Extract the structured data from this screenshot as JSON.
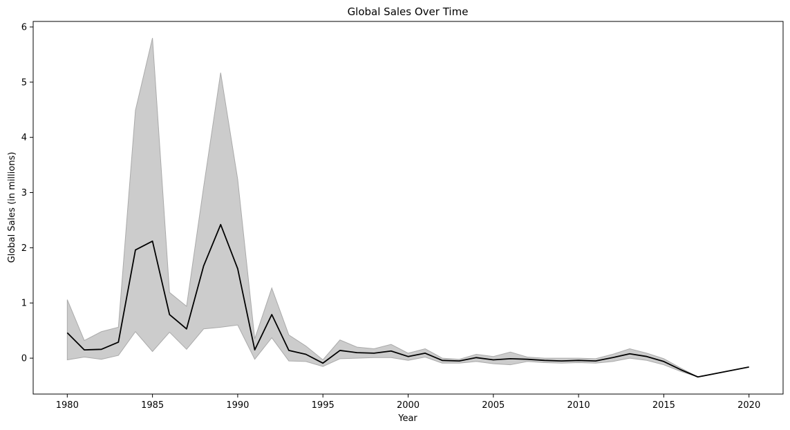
{
  "chart_data": {
    "type": "line",
    "title": "Global Sales Over Time",
    "xlabel": "Year",
    "ylabel": "Global Sales (in millions)",
    "xlim": [
      1978,
      2022
    ],
    "ylim": [
      -0.65,
      6.1
    ],
    "xticks": [
      1980,
      1985,
      1990,
      1995,
      2000,
      2005,
      2010,
      2015,
      2020
    ],
    "yticks": [
      0,
      1,
      2,
      3,
      4,
      5,
      6
    ],
    "grid": false,
    "colors": {
      "line": "#000000",
      "band": "#cccccc",
      "band_edge": "#aaaaaa"
    },
    "series": [
      {
        "x": [
          1980,
          1981,
          1982,
          1983,
          1984,
          1985,
          1986,
          1987,
          1988,
          1989,
          1990,
          1991,
          1992,
          1993,
          1994,
          1995,
          1996,
          1997,
          1998,
          1999,
          2000,
          2001,
          2002,
          2003,
          2004,
          2005,
          2006,
          2007,
          2008,
          2009,
          2010,
          2011,
          2012,
          2013,
          2014,
          2015,
          2016,
          2017,
          2020
        ],
        "y": [
          0.46,
          0.15,
          0.16,
          0.29,
          1.96,
          2.12,
          0.79,
          0.53,
          1.67,
          2.42,
          1.62,
          0.15,
          0.79,
          0.14,
          0.07,
          -0.09,
          0.14,
          0.1,
          0.09,
          0.13,
          0.03,
          0.09,
          -0.04,
          -0.05,
          0.01,
          -0.03,
          -0.01,
          -0.02,
          -0.04,
          -0.05,
          -0.04,
          -0.05,
          0.01,
          0.08,
          0.03,
          -0.06,
          -0.21,
          -0.34,
          -0.16
        ],
        "lower": [
          -0.03,
          0.02,
          -0.02,
          0.05,
          0.48,
          0.12,
          0.47,
          0.16,
          0.53,
          0.56,
          0.6,
          -0.02,
          0.37,
          -0.05,
          -0.06,
          -0.15,
          -0.01,
          0.0,
          0.01,
          0.01,
          -0.04,
          0.02,
          -0.09,
          -0.09,
          -0.06,
          -0.1,
          -0.12,
          -0.06,
          -0.08,
          -0.09,
          -0.08,
          -0.09,
          -0.06,
          0.0,
          -0.04,
          -0.12,
          -0.24,
          -0.34,
          -0.16
        ],
        "upper": [
          1.06,
          0.32,
          0.48,
          0.56,
          4.49,
          5.8,
          1.19,
          0.94,
          3.1,
          5.17,
          3.24,
          0.35,
          1.27,
          0.42,
          0.22,
          -0.03,
          0.33,
          0.2,
          0.17,
          0.25,
          0.09,
          0.17,
          0.0,
          -0.02,
          0.07,
          0.03,
          0.11,
          0.02,
          0.0,
          0.0,
          0.0,
          -0.01,
          0.07,
          0.17,
          0.09,
          -0.01,
          -0.18,
          -0.34,
          -0.16
        ]
      }
    ]
  }
}
